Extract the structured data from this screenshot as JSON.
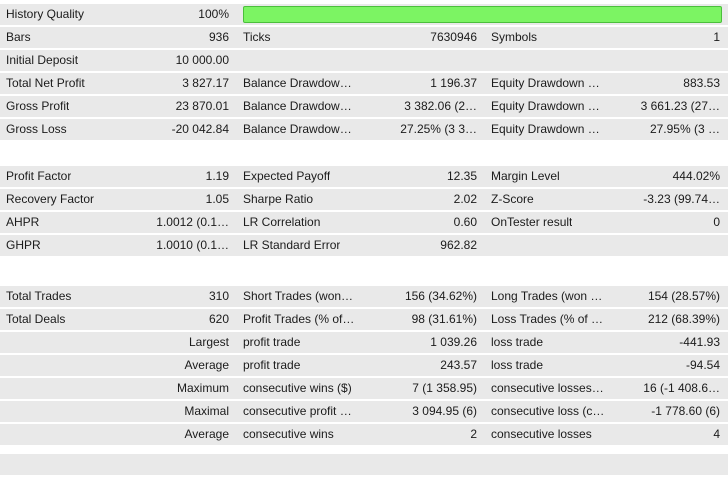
{
  "table": {
    "colors": {
      "row_bg": "#e9e9e9",
      "bar_fill": "#7cf463",
      "bar_border": "#4bbf3c",
      "text": "#1b1b1b"
    },
    "progress": {
      "label": "History Quality",
      "value": "100%",
      "percent": 100
    },
    "rows": [
      {
        "type": "bar",
        "cells": [
          "History Quality",
          "100%",
          "",
          "",
          "",
          ""
        ]
      },
      {
        "type": "data",
        "cells": [
          "Bars",
          "936",
          "Ticks",
          "7630946",
          "Symbols",
          "1"
        ]
      },
      {
        "type": "data",
        "cells": [
          "Initial Deposit",
          "10 000.00",
          "",
          "",
          "",
          ""
        ]
      },
      {
        "type": "data",
        "cells": [
          "Total Net Profit",
          "3 827.17",
          "Balance Drawdow…",
          "1 196.37",
          "Equity Drawdown …",
          "883.53"
        ]
      },
      {
        "type": "data",
        "cells": [
          "Gross Profit",
          "23 870.01",
          "Balance Drawdow…",
          "3 382.06 (2…",
          "Equity Drawdown …",
          "3 661.23 (27…"
        ]
      },
      {
        "type": "data",
        "cells": [
          "Gross Loss",
          "-20 042.84",
          "Balance Drawdow…",
          "27.25% (3 3…",
          "Equity Drawdown …",
          "27.95% (3 …"
        ]
      },
      {
        "type": "spacer",
        "height": 24
      },
      {
        "type": "data",
        "cells": [
          "Profit Factor",
          "1.19",
          "Expected Payoff",
          "12.35",
          "Margin Level",
          "444.02%"
        ]
      },
      {
        "type": "data",
        "cells": [
          "Recovery Factor",
          "1.05",
          "Sharpe Ratio",
          "2.02",
          "Z-Score",
          "-3.23 (99.74…"
        ]
      },
      {
        "type": "data",
        "cells": [
          "AHPR",
          "1.0012 (0.1…",
          "LR Correlation",
          "0.60",
          "OnTester result",
          "0"
        ]
      },
      {
        "type": "data",
        "cells": [
          "GHPR",
          "1.0010 (0.1…",
          "LR Standard Error",
          "962.82",
          "",
          ""
        ]
      },
      {
        "type": "spacer",
        "height": 28
      },
      {
        "type": "data",
        "cells": [
          "Total Trades",
          "310",
          "Short Trades (won…",
          "156 (34.62%)",
          "Long Trades (won …",
          "154 (28.57%)"
        ]
      },
      {
        "type": "data",
        "cells": [
          "Total Deals",
          "620",
          "Profit Trades (% of…",
          "98 (31.61%)",
          "Loss Trades (% of …",
          "212 (68.39%)"
        ]
      },
      {
        "type": "data",
        "cells": [
          "",
          "Largest",
          "profit trade",
          "1 039.26",
          "loss trade",
          "-441.93"
        ]
      },
      {
        "type": "data",
        "cells": [
          "",
          "Average",
          "profit trade",
          "243.57",
          "loss trade",
          "-94.54"
        ]
      },
      {
        "type": "data",
        "cells": [
          "",
          "Maximum",
          "consecutive wins ($)",
          "7 (1 358.95)",
          "consecutive losses…",
          "16 (-1 408.6…"
        ]
      },
      {
        "type": "data",
        "cells": [
          "",
          "Maximal",
          "consecutive profit …",
          "3 094.95 (6)",
          "consecutive loss (c…",
          "-1 778.60 (6)"
        ]
      },
      {
        "type": "data",
        "cells": [
          "",
          "Average",
          "consecutive wins",
          "2",
          "consecutive losses",
          "4"
        ]
      },
      {
        "type": "spacer",
        "height": 7
      },
      {
        "type": "data",
        "cells": [
          "",
          "",
          "",
          "",
          "",
          ""
        ]
      }
    ]
  }
}
